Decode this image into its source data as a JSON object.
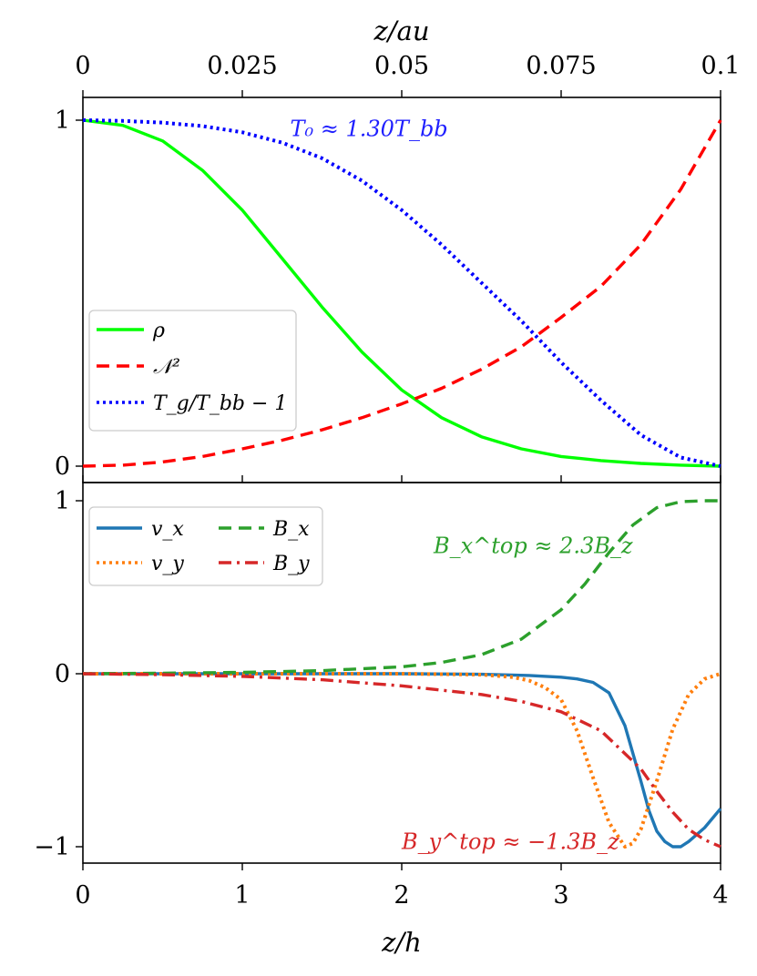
{
  "chart_data": [
    {
      "panel": "top",
      "type": "line",
      "xlabel": "z/h",
      "secondary_xlabel": "z/au",
      "xlim": [
        0,
        4
      ],
      "ylim": [
        0,
        1
      ],
      "secondary_xlim": [
        0,
        0.1
      ],
      "secondary_xticks": [
        0,
        0.025,
        0.05,
        0.075,
        0.1
      ],
      "secondary_xtick_labels": [
        "0",
        "0.025",
        "0.05",
        "0.075",
        "0.1"
      ],
      "yticks": [
        0,
        1
      ],
      "ytick_labels": [
        "0",
        "1"
      ],
      "legend": {
        "placement": "lower-left"
      },
      "annotations": [
        {
          "text": "T₀ ≈ 1.30T_bb",
          "x": 1.3,
          "y": 0.975,
          "color": "#1f1fff"
        }
      ],
      "series": [
        {
          "name": "ρ",
          "legend_label": "ρ",
          "color": "#00ff00",
          "style": "solid",
          "x": [
            0,
            0.25,
            0.5,
            0.75,
            1.0,
            1.25,
            1.5,
            1.75,
            2.0,
            2.25,
            2.5,
            2.75,
            3.0,
            3.25,
            3.5,
            3.75,
            4.0
          ],
          "y": [
            1.0,
            0.985,
            0.94,
            0.855,
            0.74,
            0.6,
            0.46,
            0.33,
            0.22,
            0.14,
            0.085,
            0.05,
            0.028,
            0.016,
            0.008,
            0.003,
            0.0
          ]
        },
        {
          "name": "N2",
          "legend_label": "𝒩²",
          "color": "#ff0000",
          "style": "dashed",
          "x": [
            0,
            0.25,
            0.5,
            0.75,
            1.0,
            1.25,
            1.5,
            1.75,
            2.0,
            2.25,
            2.5,
            2.75,
            3.0,
            3.25,
            3.5,
            3.75,
            4.0
          ],
          "y": [
            0.0,
            0.003,
            0.012,
            0.028,
            0.05,
            0.075,
            0.105,
            0.14,
            0.18,
            0.225,
            0.28,
            0.345,
            0.43,
            0.52,
            0.64,
            0.8,
            1.0
          ]
        },
        {
          "name": "Tg",
          "legend_label": "T_g/T_bb − 1",
          "color": "#0000ff",
          "style": "dotted",
          "x": [
            0,
            0.25,
            0.5,
            0.75,
            1.0,
            1.25,
            1.5,
            1.75,
            2.0,
            2.25,
            2.5,
            2.75,
            3.0,
            3.25,
            3.5,
            3.75,
            4.0
          ],
          "y": [
            1.0,
            0.998,
            0.993,
            0.983,
            0.965,
            0.935,
            0.89,
            0.825,
            0.74,
            0.64,
            0.53,
            0.42,
            0.3,
            0.19,
            0.09,
            0.025,
            0.0
          ]
        }
      ]
    },
    {
      "panel": "bottom",
      "type": "line",
      "xlabel": "z/h",
      "xlim": [
        0,
        4
      ],
      "ylim": [
        -1.1,
        1.0
      ],
      "xticks": [
        0,
        1,
        2,
        3,
        4
      ],
      "xtick_labels": [
        "0",
        "1",
        "2",
        "3",
        "4"
      ],
      "yticks": [
        -1,
        0,
        1
      ],
      "ytick_labels": [
        "−1",
        "0",
        "1"
      ],
      "legend": {
        "placement": "upper-left",
        "columns": 2
      },
      "annotations": [
        {
          "text": "B_x^top ≈ 2.3B_z",
          "x": 2.2,
          "y": 0.74,
          "color": "#2ca02c"
        },
        {
          "text": "B_y^top ≈ −1.3B_z",
          "x": 2.0,
          "y": -0.97,
          "color": "#d62728"
        }
      ],
      "series": [
        {
          "name": "vx",
          "legend_label": "v_x",
          "color": "#1f77b4",
          "style": "solid",
          "x": [
            0,
            0.5,
            1.0,
            1.5,
            2.0,
            2.5,
            2.8,
            3.0,
            3.1,
            3.2,
            3.3,
            3.4,
            3.5,
            3.55,
            3.6,
            3.65,
            3.7,
            3.75,
            3.8,
            3.9,
            4.0
          ],
          "y": [
            0,
            0,
            0,
            0,
            0,
            -0.003,
            -0.01,
            -0.02,
            -0.03,
            -0.05,
            -0.11,
            -0.3,
            -0.62,
            -0.79,
            -0.91,
            -0.97,
            -1.0,
            -1.0,
            -0.97,
            -0.89,
            -0.78
          ]
        },
        {
          "name": "vy",
          "legend_label": "v_y",
          "color": "#ff7f0e",
          "style": "dotted",
          "x": [
            0,
            0.5,
            1.0,
            1.5,
            2.0,
            2.5,
            2.7,
            2.8,
            2.9,
            3.0,
            3.1,
            3.2,
            3.3,
            3.4,
            3.45,
            3.5,
            3.6,
            3.7,
            3.8,
            3.9,
            4.0
          ],
          "y": [
            0,
            0,
            0,
            0,
            0,
            -0.005,
            -0.02,
            -0.04,
            -0.08,
            -0.15,
            -0.33,
            -0.6,
            -0.86,
            -1.0,
            -0.98,
            -0.9,
            -0.62,
            -0.32,
            -0.12,
            -0.03,
            0.0
          ]
        },
        {
          "name": "Bx",
          "legend_label": "B_x",
          "color": "#2ca02c",
          "style": "dashed",
          "x": [
            0,
            0.5,
            1.0,
            1.5,
            2.0,
            2.25,
            2.5,
            2.75,
            3.0,
            3.15,
            3.3,
            3.45,
            3.6,
            3.75,
            3.9,
            4.0
          ],
          "y": [
            0,
            0.003,
            0.008,
            0.018,
            0.04,
            0.065,
            0.11,
            0.2,
            0.37,
            0.52,
            0.7,
            0.86,
            0.96,
            0.995,
            1.0,
            1.0
          ]
        },
        {
          "name": "By",
          "legend_label": "B_y",
          "color": "#d62728",
          "style": "dashdot",
          "x": [
            0,
            0.5,
            1.0,
            1.5,
            2.0,
            2.5,
            2.75,
            3.0,
            3.25,
            3.5,
            3.6,
            3.7,
            3.8,
            3.9,
            4.0
          ],
          "y": [
            0,
            -0.005,
            -0.015,
            -0.035,
            -0.07,
            -0.12,
            -0.16,
            -0.22,
            -0.33,
            -0.55,
            -0.68,
            -0.8,
            -0.9,
            -0.96,
            -1.0
          ]
        }
      ]
    }
  ],
  "texts": {
    "xlabel": "z/h",
    "secondary_xlabel": "z/au"
  }
}
